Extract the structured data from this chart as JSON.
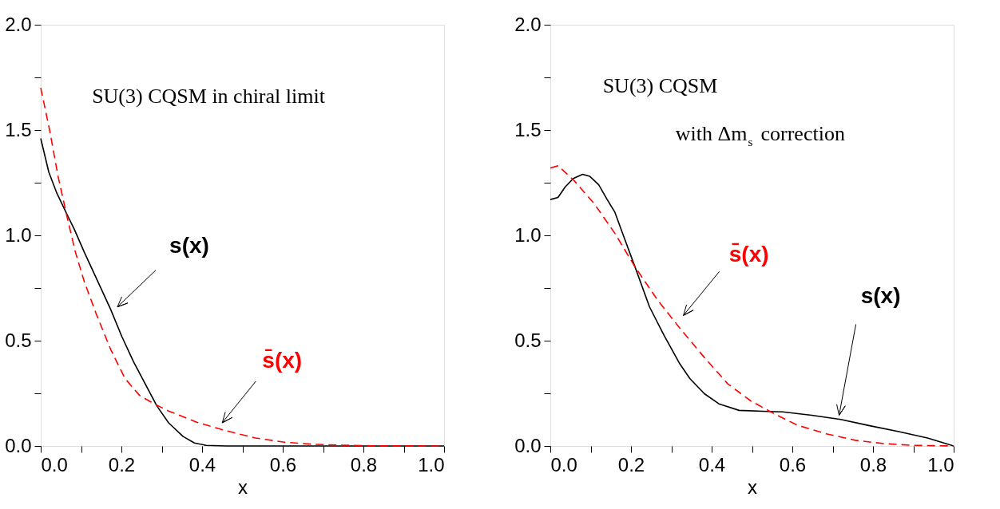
{
  "chart_data": [
    {
      "type": "line",
      "xlabel": "x",
      "xlim": [
        0,
        1
      ],
      "ylim": [
        0,
        2
      ],
      "xticks": [
        {
          "value": 0,
          "label": "0.0"
        },
        {
          "value": 0.1,
          "label": null
        },
        {
          "value": 0.2,
          "label": "0.2"
        },
        {
          "value": 0.3,
          "label": null
        },
        {
          "value": 0.4,
          "label": "0.4"
        },
        {
          "value": 0.5,
          "label": null
        },
        {
          "value": 0.6,
          "label": "0.6"
        },
        {
          "value": 0.7,
          "label": null
        },
        {
          "value": 0.8,
          "label": "0.8"
        },
        {
          "value": 0.9,
          "label": null
        },
        {
          "value": 1,
          "label": "1.0"
        }
      ],
      "yticks": [
        {
          "value": 0,
          "label": "0.0"
        },
        {
          "value": 0.25,
          "label": null
        },
        {
          "value": 0.5,
          "label": "0.5"
        },
        {
          "value": 0.75,
          "label": null
        },
        {
          "value": 1,
          "label": "1.0"
        },
        {
          "value": 1.25,
          "label": null
        },
        {
          "value": 1.5,
          "label": "1.5"
        },
        {
          "value": 1.75,
          "label": null
        },
        {
          "value": 2,
          "label": "2.0"
        }
      ],
      "grid": false,
      "marker": "none",
      "series": [
        {
          "color": "#000000",
          "line_style": "solid",
          "x": [
            0,
            0.02,
            0.04,
            0.065,
            0.083,
            0.108,
            0.137,
            0.173,
            0.201,
            0.23,
            0.259,
            0.288,
            0.317,
            0.353,
            0.381,
            0.41,
            0.46,
            0.6,
            0.8,
            1.0
          ],
          "values": [
            1.46,
            1.3,
            1.2,
            1.1,
            1.03,
            0.92,
            0.8,
            0.65,
            0.52,
            0.4,
            0.295,
            0.19,
            0.11,
            0.045,
            0.014,
            0.003,
            0,
            0,
            0,
            0
          ]
        },
        {
          "color": "#ff0000",
          "line_style": "dashed",
          "x": [
            0,
            0.022,
            0.043,
            0.065,
            0.086,
            0.108,
            0.137,
            0.173,
            0.209,
            0.245,
            0.281,
            0.317,
            0.388,
            0.46,
            0.532,
            0.604,
            0.676,
            0.748,
            0.82,
            1.0
          ],
          "values": [
            1.7,
            1.5,
            1.28,
            1.09,
            0.92,
            0.78,
            0.63,
            0.46,
            0.32,
            0.24,
            0.2,
            0.166,
            0.112,
            0.072,
            0.038,
            0.018,
            0.008,
            0.004,
            0.001,
            0
          ]
        }
      ],
      "annotations": [
        "SU(3) CQSM in chiral limit",
        "s(x)",
        "s̄(x)"
      ]
    },
    {
      "type": "line",
      "xlabel": "x",
      "xlim": [
        0,
        1
      ],
      "ylim": [
        0,
        2
      ],
      "xticks": [
        {
          "value": 0,
          "label": "0.0"
        },
        {
          "value": 0.1,
          "label": null
        },
        {
          "value": 0.2,
          "label": "0.2"
        },
        {
          "value": 0.3,
          "label": null
        },
        {
          "value": 0.4,
          "label": "0.4"
        },
        {
          "value": 0.5,
          "label": null
        },
        {
          "value": 0.6,
          "label": "0.6"
        },
        {
          "value": 0.7,
          "label": null
        },
        {
          "value": 0.8,
          "label": "0.8"
        },
        {
          "value": 0.9,
          "label": null
        },
        {
          "value": 1,
          "label": "1.0"
        }
      ],
      "yticks": [
        {
          "value": 0,
          "label": "0.0"
        },
        {
          "value": 0.25,
          "label": null
        },
        {
          "value": 0.5,
          "label": "0.5"
        },
        {
          "value": 0.75,
          "label": null
        },
        {
          "value": 1,
          "label": "1.0"
        },
        {
          "value": 1.25,
          "label": null
        },
        {
          "value": 1.5,
          "label": "1.5"
        },
        {
          "value": 1.75,
          "label": null
        },
        {
          "value": 2,
          "label": "2.0"
        }
      ],
      "grid": false,
      "marker": "none",
      "series": [
        {
          "color": "#000000",
          "line_style": "solid",
          "x": [
            0,
            0.019,
            0.037,
            0.057,
            0.08,
            0.098,
            0.12,
            0.141,
            0.16,
            0.181,
            0.21,
            0.246,
            0.282,
            0.321,
            0.346,
            0.382,
            0.418,
            0.468,
            0.54,
            0.576,
            0.648,
            0.72,
            0.792,
            0.864,
            0.935,
            1.0
          ],
          "values": [
            1.17,
            1.18,
            1.23,
            1.27,
            1.29,
            1.28,
            1.24,
            1.17,
            1.11,
            1.0,
            0.85,
            0.66,
            0.525,
            0.39,
            0.32,
            0.248,
            0.2,
            0.169,
            0.164,
            0.162,
            0.146,
            0.126,
            0.096,
            0.068,
            0.038,
            0
          ]
        },
        {
          "color": "#ff0000",
          "line_style": "dashed",
          "x": [
            0,
            0.019,
            0.059,
            0.109,
            0.16,
            0.21,
            0.267,
            0.325,
            0.382,
            0.44,
            0.497,
            0.555,
            0.612,
            0.684,
            0.756,
            0.828,
            0.9,
            1.0
          ],
          "values": [
            1.32,
            1.33,
            1.26,
            1.15,
            1.01,
            0.85,
            0.69,
            0.55,
            0.42,
            0.295,
            0.214,
            0.153,
            0.099,
            0.058,
            0.027,
            0.011,
            0.003,
            0
          ]
        }
      ],
      "annotations": [
        "SU(3) CQSM",
        "with Δm$_{s}$ correction",
        "s̄(x)",
        "s(x)"
      ]
    }
  ]
}
